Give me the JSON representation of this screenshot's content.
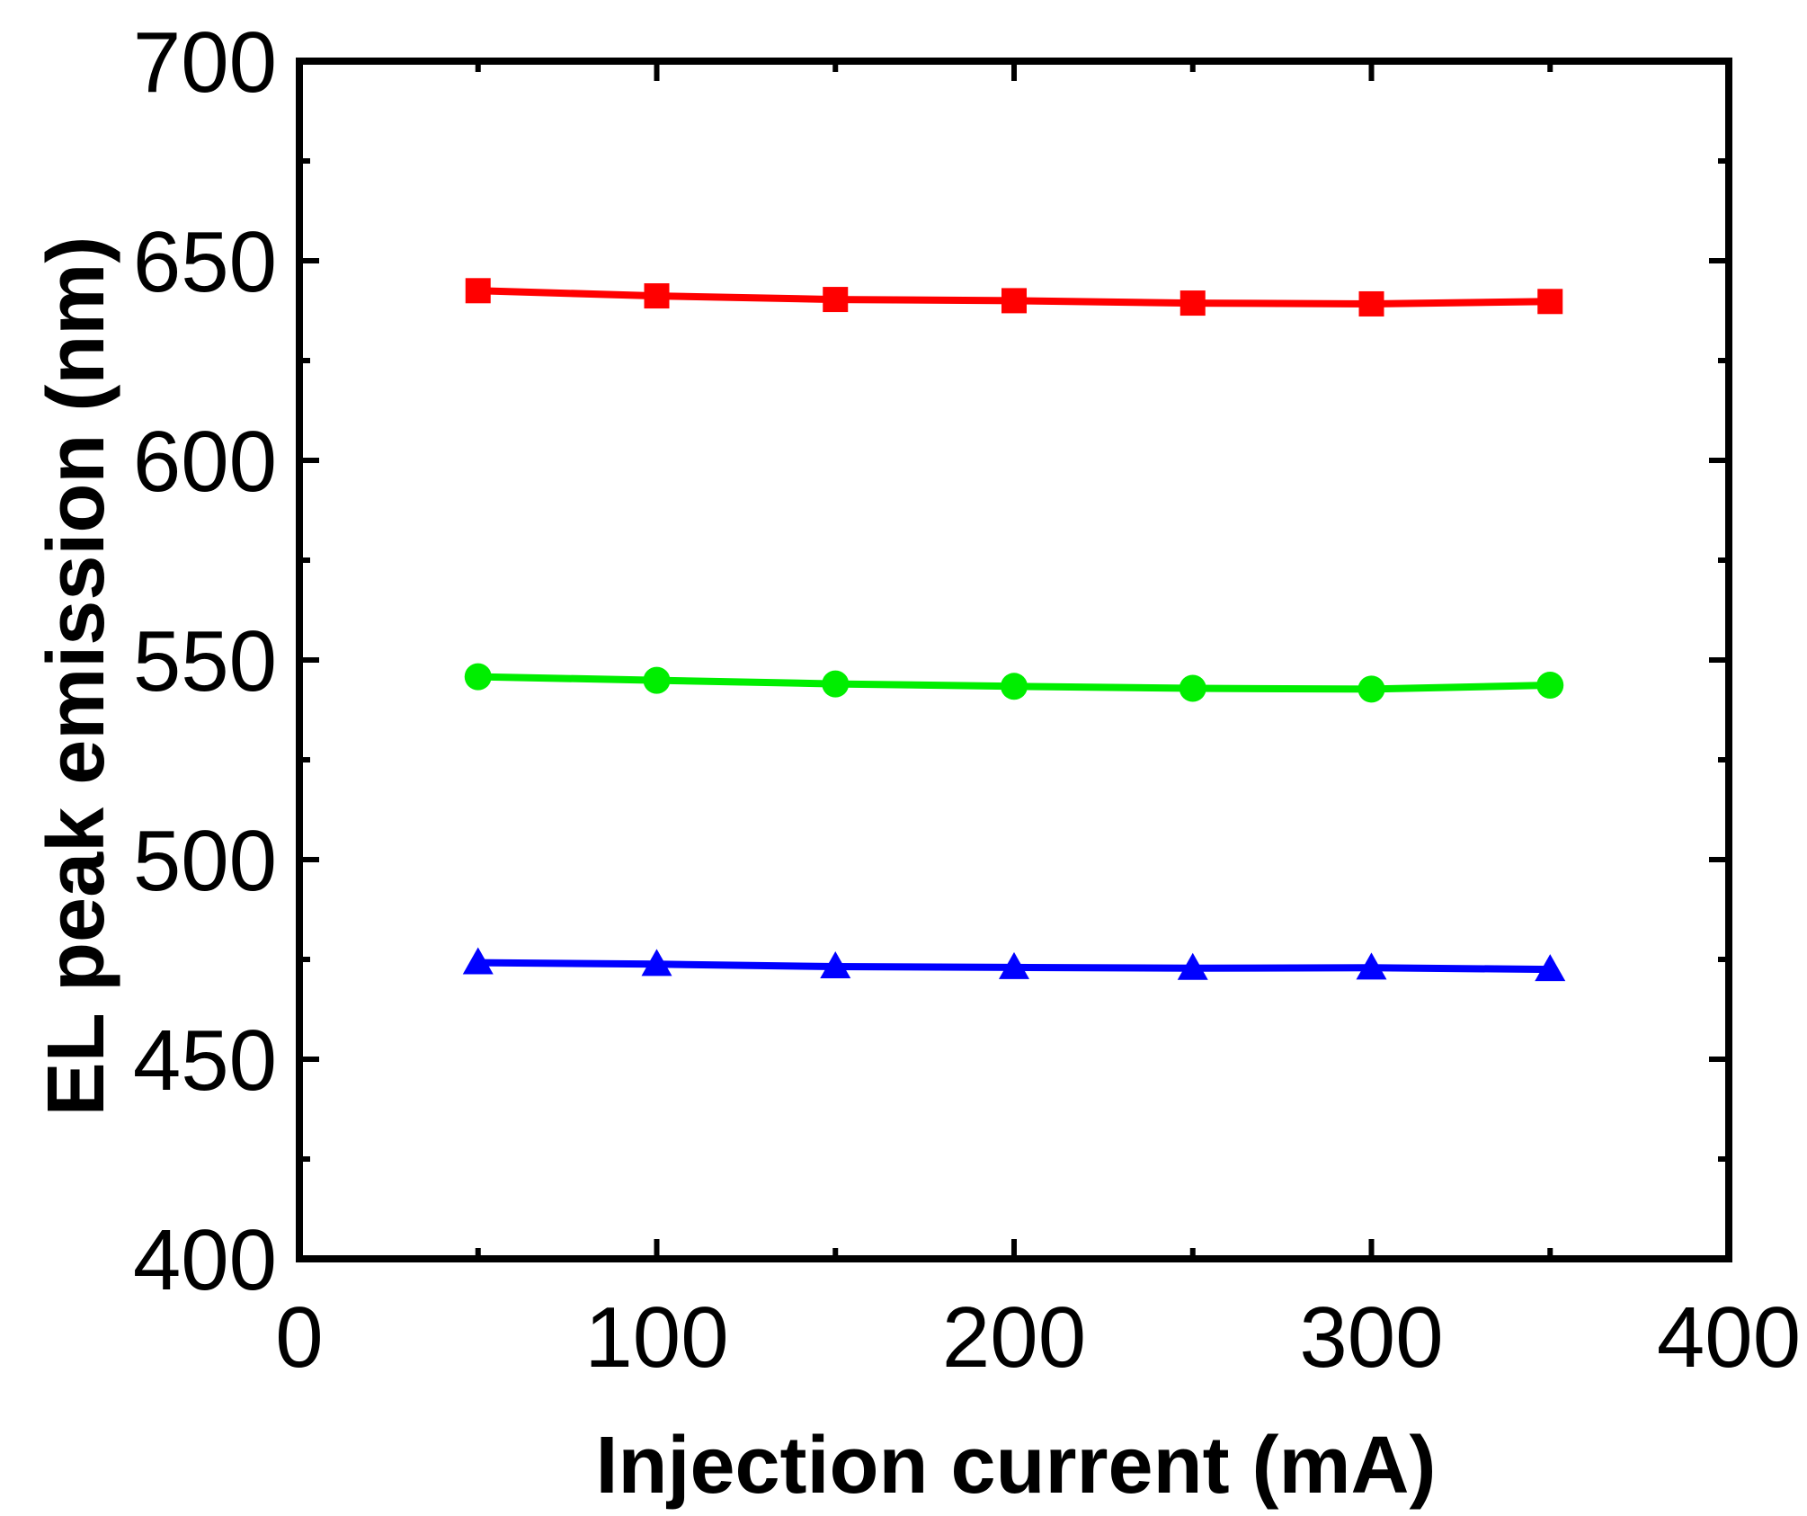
{
  "chart_data": {
    "type": "line",
    "title": "",
    "xlabel": "Injection current (mA)",
    "ylabel": "EL peak emission (nm)",
    "xlim": [
      0,
      400
    ],
    "ylim": [
      400,
      700
    ],
    "xticks": [
      0,
      100,
      200,
      300,
      400
    ],
    "yticks": [
      400,
      450,
      500,
      550,
      600,
      650,
      700
    ],
    "grid": false,
    "legend": "none",
    "x": [
      50,
      100,
      150,
      200,
      250,
      300,
      350
    ],
    "series": [
      {
        "name": "red",
        "marker": "square",
        "color": "#ff0000",
        "values": [
          642.5,
          641.2,
          640.3,
          640.0,
          639.4,
          639.2,
          639.8
        ]
      },
      {
        "name": "green",
        "marker": "circle",
        "color": "#00ee00",
        "values": [
          545.8,
          544.9,
          544.0,
          543.4,
          542.9,
          542.7,
          543.7
        ]
      },
      {
        "name": "blue",
        "marker": "triangle",
        "color": "#0000ff",
        "values": [
          474.2,
          473.8,
          473.2,
          473.0,
          472.8,
          472.9,
          472.5
        ]
      }
    ]
  }
}
